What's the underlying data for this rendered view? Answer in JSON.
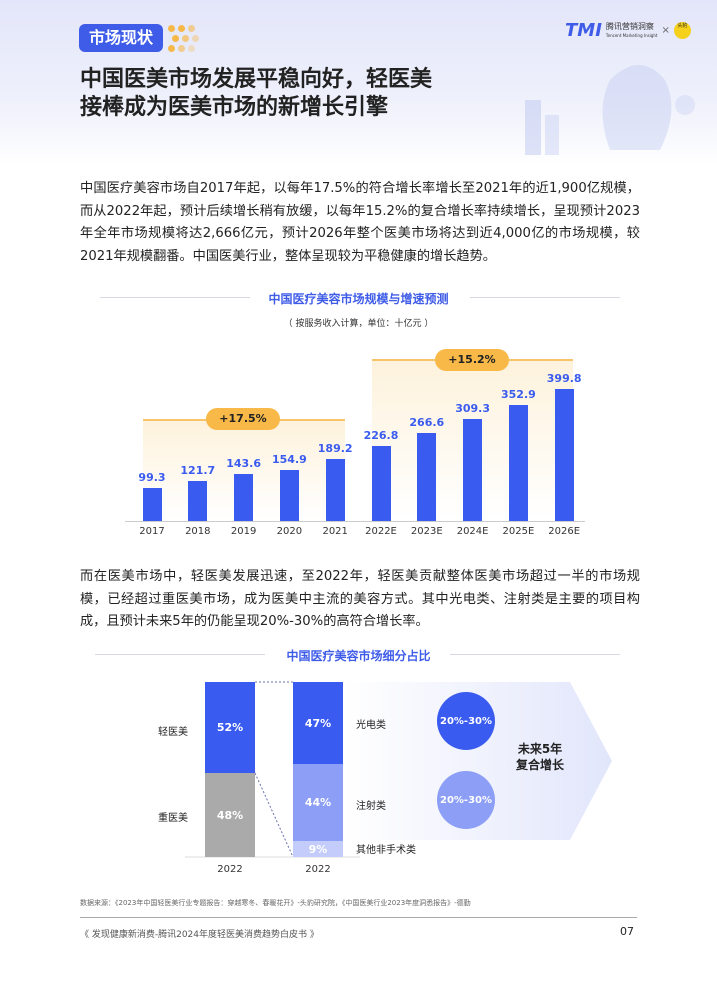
{
  "header": {
    "badge": "市场现状",
    "title_line1": "中国医美市场发展平稳向好，轻医美",
    "title_line2": "接棒成为医美市场的新增长引擎",
    "logo_mark": "TMI",
    "logo_name": "腾讯营销洞察",
    "logo_sub": "Tencent Marketing Insight",
    "logo_sep": "×",
    "partner_logo": "头豹"
  },
  "paragraph1": "中国医疗美容市场自2017年起，以每年17.5%的符合增长率增长至2021年的近1,900亿规模，而从2022年起，预计后续增长稍有放缓，以每年15.2%的复合增长率持续增长，呈现预计2023年全年市场规模将达2,666亿元，预计2026年整个医美市场将达到近4,000亿的市场规模，较2021年规模翻番。中国医美行业，整体呈现较为平稳健康的增长趋势。",
  "paragraph2": "而在医美市场中，轻医美发展迅速，至2022年，轻医美贡献整体医美市场超过一半的市场规模，已经超过重医美市场，成为医美中主流的美容方式。其中光电类、注射类是主要的项目构成，且预计未来5年的仍能呈现20%-30%的高符合增长率。",
  "chart_data": [
    {
      "type": "bar",
      "title": "中国医疗美容市场规模与增速预测",
      "subtitle": "（ 按服务收入计算，单位：十亿元 ）",
      "categories": [
        "2017",
        "2018",
        "2019",
        "2020",
        "2021",
        "2022E",
        "2023E",
        "2024E",
        "2025E",
        "2026E"
      ],
      "values": [
        99.3,
        121.7,
        143.6,
        154.9,
        189.2,
        226.8,
        266.6,
        309.3,
        352.9,
        399.8
      ],
      "annotations": [
        {
          "label": "+17.5%",
          "from": "2017",
          "to": "2021"
        },
        {
          "label": "+15.2%",
          "from": "2022E",
          "to": "2026E"
        }
      ],
      "color": "#3a5bef",
      "ylim": [
        0,
        400
      ]
    },
    {
      "type": "stacked-bar",
      "title": "中国医疗美容市场细分占比",
      "columns": [
        {
          "x": "2022",
          "segments": [
            {
              "name": "轻医美",
              "value": 52,
              "label": "52%",
              "color": "#3a5bef"
            },
            {
              "name": "重医美",
              "value": 48,
              "label": "48%",
              "color": "#aaaaaa"
            }
          ]
        },
        {
          "x": "2022",
          "segments": [
            {
              "name": "光电类",
              "value": 47,
              "label": "47%",
              "color": "#3a5bef"
            },
            {
              "name": "注射类",
              "value": 44,
              "label": "44%",
              "color": "#8c9ef5"
            },
            {
              "name": "其他非手术类",
              "value": 9,
              "label": "9%",
              "color": "#c3ccfa"
            }
          ]
        }
      ],
      "growth": {
        "title_line1": "未来5年",
        "title_line2": "复合增长",
        "items": [
          {
            "label": "20%-30%",
            "color": "#3a5bef"
          },
          {
            "label": "20%-30%",
            "color": "#8c9ef5"
          }
        ]
      }
    }
  ],
  "footer": {
    "source": "数据来源：《2023年中国轻医美行业专题报告：穿越寒冬、春暖花开》-头豹研究院，《中国医美行业2023年度洞悉报告》-德勤",
    "book": "《 发现健康新消费-腾讯2024年度轻医美消费趋势白皮书 》",
    "page": "07"
  }
}
